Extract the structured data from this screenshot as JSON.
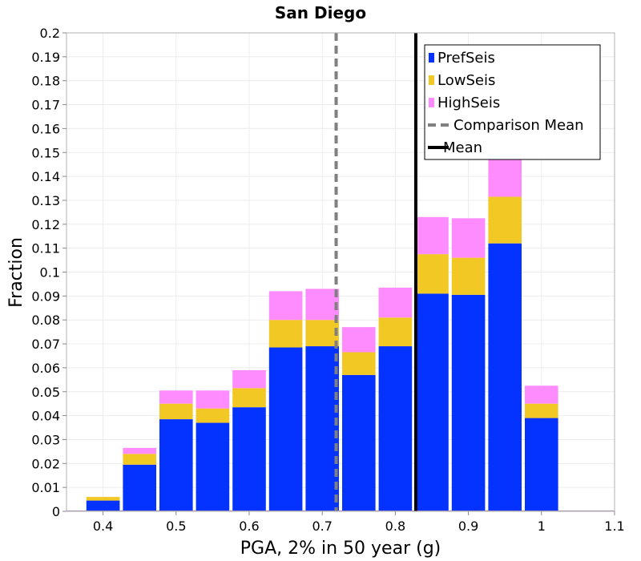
{
  "chart_data": {
    "type": "bar",
    "stacked": true,
    "title": "San Diego",
    "xlabel": "PGA, 2% in 50 year (g)",
    "ylabel": "Fraction",
    "xlim": [
      0.35,
      1.1
    ],
    "ylim": [
      0,
      0.2
    ],
    "bin_width": 0.05,
    "x": [
      0.4,
      0.45,
      0.5,
      0.55,
      0.6,
      0.65,
      0.7,
      0.75,
      0.8,
      0.85,
      0.9,
      0.95,
      1.0
    ],
    "xticks": [
      "0.4",
      "0.5",
      "0.6",
      "0.7",
      "0.8",
      "0.9",
      "1",
      "1.1"
    ],
    "xtick_values": [
      0.4,
      0.5,
      0.6,
      0.7,
      0.8,
      0.9,
      1.0,
      1.1
    ],
    "yticks": [
      "0",
      "0.01",
      "0.02",
      "0.03",
      "0.04",
      "0.05",
      "0.06",
      "0.07",
      "0.08",
      "0.09",
      "0.1",
      "0.11",
      "0.12",
      "0.13",
      "0.14",
      "0.15",
      "0.16",
      "0.17",
      "0.18",
      "0.19",
      "0.2"
    ],
    "ytick_values": [
      0,
      0.01,
      0.02,
      0.03,
      0.04,
      0.05,
      0.06,
      0.07,
      0.08,
      0.09,
      0.1,
      0.11,
      0.12,
      0.13,
      0.14,
      0.15,
      0.16,
      0.17,
      0.18,
      0.19,
      0.2
    ],
    "series": [
      {
        "name": "PrefSeis",
        "color": "#0433ff",
        "values": [
          0.0045,
          0.0195,
          0.0385,
          0.037,
          0.0435,
          0.0685,
          0.069,
          0.057,
          0.069,
          0.091,
          0.0905,
          0.112,
          0.039
        ]
      },
      {
        "name": "LowSeis",
        "color": "#f2c824",
        "values": [
          0.0015,
          0.0045,
          0.0065,
          0.006,
          0.008,
          0.0115,
          0.011,
          0.0095,
          0.012,
          0.0165,
          0.0155,
          0.0195,
          0.006
        ]
      },
      {
        "name": "HighSeis",
        "color": "#ff8cff",
        "values": [
          0,
          0.0025,
          0.0055,
          0.0075,
          0.0075,
          0.012,
          0.013,
          0.0105,
          0.0125,
          0.0155,
          0.0165,
          0.0205,
          0.0075
        ]
      }
    ],
    "lines": [
      {
        "name": "Comparison Mean",
        "x": 0.719,
        "style": "dashed",
        "color": "#808080"
      },
      {
        "name": "Mean",
        "x": 0.828,
        "style": "solid",
        "color": "#000000"
      }
    ],
    "legend_position": "top-right",
    "grid": true
  }
}
